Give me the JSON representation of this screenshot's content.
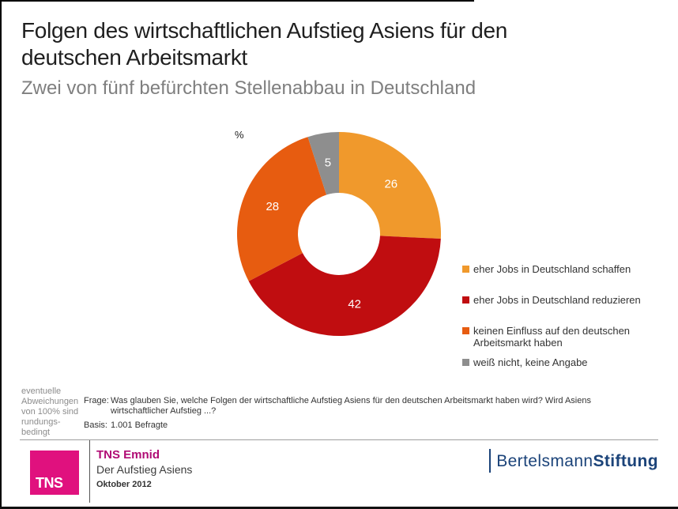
{
  "header": {
    "title_lines": [
      "Folgen des wirtschaftlichen Aufstieg Asiens für den",
      "deutschen Arbeitsmarkt"
    ],
    "subtitle": "Zwei von fünf befürchten Stellenabbau in Deutschland"
  },
  "chart_data": {
    "type": "pie",
    "variant": "donut",
    "title": "Folgen des wirtschaftlichen Aufstieg Asiens für den deutschen Arbeitsmarkt",
    "subtitle": "Zwei von fünf befürchten Stellenabbau in Deutschland",
    "unit_label": "%",
    "categories": [
      "eher Jobs in Deutschland schaffen",
      "eher Jobs in Deutschland reduzieren",
      "keinen Einfluss auf den deutschen Arbeitsmarkt haben",
      "weiß nicht, keine Angabe"
    ],
    "values": [
      26,
      42,
      28,
      5
    ],
    "colors": [
      "#F0992C",
      "#C00D10",
      "#E75C10",
      "#8E8E8E"
    ],
    "legend_position": "right",
    "start_angle_deg": 0,
    "clockwise": true,
    "inner_radius_ratio": 0.4
  },
  "footnote": {
    "rounding_note_lines": [
      "eventuelle",
      "Abweichungen",
      "von 100% sind",
      "rundungs-",
      "bedingt"
    ],
    "question_label": "Frage:",
    "question_lines": [
      "Was glauben Sie, welche Folgen der wirtschaftliche Aufstieg Asiens für den deutschen Arbeitsmarkt haben wird? Wird Asiens",
      "wirtschaftlicher Aufstieg ...?"
    ],
    "basis_label": "Basis:",
    "basis_value": "1.001 Befragte"
  },
  "footer": {
    "tns_logo_text": "TNS",
    "brand": "TNS Emnid",
    "project": "Der Aufstieg Asiens",
    "date": "Oktober 2012",
    "bertelsmann_part1": "Bertelsmann",
    "bertelsmann_part2": "Stiftung"
  },
  "colors": {
    "tns_magenta": "#E0117E",
    "tns_brand_text": "#B00A74",
    "bertelsmann_navy": "#1B4379"
  }
}
